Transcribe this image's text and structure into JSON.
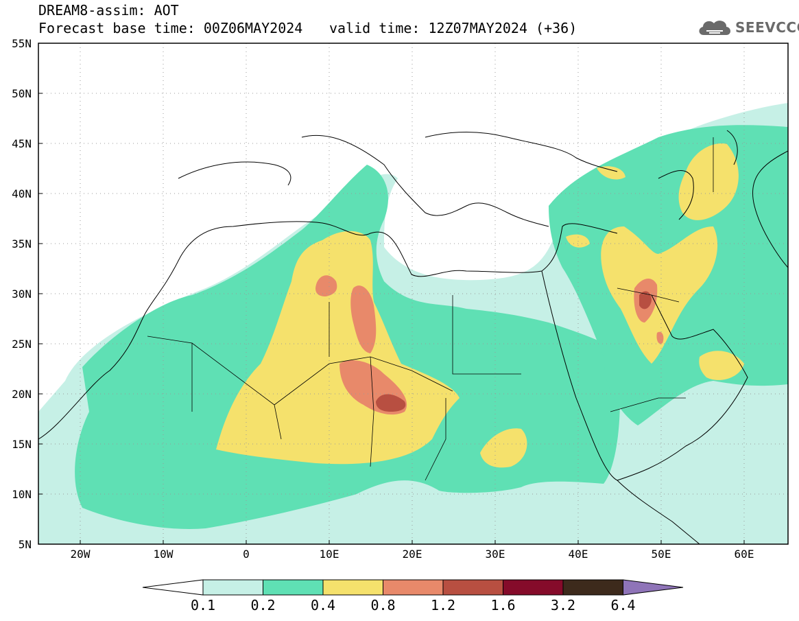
{
  "title": {
    "line1": "DREAM8-assim: AOT",
    "base_time": "Forecast base time: 00Z06MAY2024",
    "valid_time": "valid time: 12Z07MAY2024 (+36)"
  },
  "logo": {
    "text": "SEEVCCC",
    "icon": "cloud-icon"
  },
  "map": {
    "lat_labels": [
      "55N",
      "50N",
      "45N",
      "40N",
      "35N",
      "30N",
      "25N",
      "20N",
      "15N",
      "10N",
      "5N"
    ],
    "lon_labels": [
      "20W",
      "10W",
      "0",
      "10E",
      "20E",
      "30E",
      "40E",
      "50E",
      "60E"
    ],
    "lat_range": [
      5,
      55
    ],
    "lon_range": [
      -25,
      65
    ],
    "grid": "dotted"
  },
  "colorbar": {
    "labels": [
      "0.1",
      "0.2",
      "0.4",
      "0.8",
      "1.2",
      "1.6",
      "3.2",
      "6.4"
    ],
    "colors": [
      "#c6f0e6",
      "#5fe0b4",
      "#f5e16c",
      "#e8896a",
      "#b84f41",
      "#850b2a",
      "#3d2a1c",
      "#8f74b8"
    ],
    "under_color": "#ffffff",
    "over_color": "#8f74b8"
  }
}
